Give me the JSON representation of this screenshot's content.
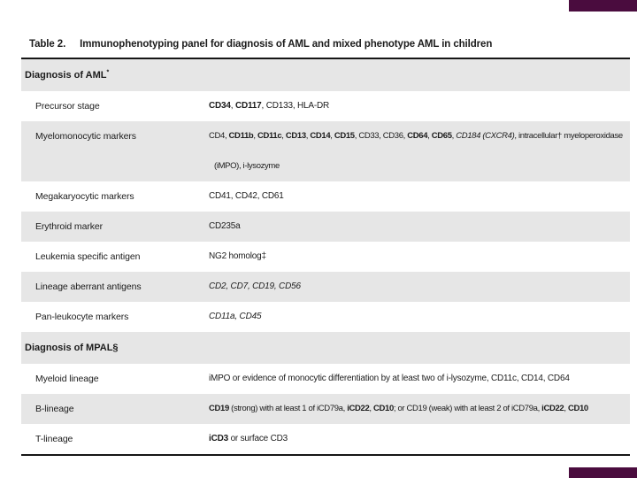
{
  "colors": {
    "accent": "#4a0c3e",
    "row_band": "#e6e6e6",
    "rule": "#161616",
    "text": "#1c1c1c"
  },
  "caption": {
    "label": "Table 2.",
    "title": "Immunophenotyping panel for diagnosis of AML and mixed phenotype AML in children"
  },
  "table": {
    "sections": [
      {
        "header": [
          {
            "t": "Diagnosis of AML"
          },
          {
            "t": "*",
            "sup": true
          }
        ],
        "rows": [
          {
            "label": "Precursor stage",
            "value": [
              {
                "t": "CD34",
                "b": true
              },
              {
                "t": ", "
              },
              {
                "t": "CD117",
                "b": true
              },
              {
                "t": ", CD133, HLA-DR"
              }
            ]
          },
          {
            "label": "Myelomonocytic markers",
            "tall": true,
            "tight": true,
            "value": [
              {
                "t": "CD4, "
              },
              {
                "t": "CD11b",
                "b": true
              },
              {
                "t": ", "
              },
              {
                "t": "CD11c",
                "b": true
              },
              {
                "t": ", "
              },
              {
                "t": "CD13",
                "b": true
              },
              {
                "t": ", "
              },
              {
                "t": "CD14",
                "b": true
              },
              {
                "t": ", "
              },
              {
                "t": "CD15",
                "b": true
              },
              {
                "t": ", CD33, CD36, "
              },
              {
                "t": "CD64",
                "b": true
              },
              {
                "t": ", "
              },
              {
                "t": "CD65",
                "b": true
              },
              {
                "t": ", "
              },
              {
                "t": "CD184 (CXCR4)",
                "i": true
              },
              {
                "t": ", intracellular† myeloperoxidase"
              },
              {
                "br": true
              },
              {
                "t": "(iMPO), i-lysozyme"
              }
            ]
          },
          {
            "label": "Megakaryocytic markers",
            "value": [
              {
                "t": "CD41, CD42, CD61"
              }
            ]
          },
          {
            "label": "Erythroid marker",
            "value": [
              {
                "t": "CD235a"
              }
            ]
          },
          {
            "label": "Leukemia specific antigen",
            "value": [
              {
                "t": "NG2 homolog‡"
              }
            ]
          },
          {
            "label": "Lineage aberrant antigens",
            "value": [
              {
                "t": "CD2, CD7, CD19, CD56",
                "i": true
              }
            ]
          },
          {
            "label": "Pan-leukocyte markers",
            "value": [
              {
                "t": "CD11a, CD45",
                "i": true
              }
            ]
          }
        ]
      },
      {
        "header": [
          {
            "t": "Diagnosis of MPAL§"
          }
        ],
        "rows": [
          {
            "label": "Myeloid lineage",
            "value": [
              {
                "t": "iMPO or evidence of monocytic differentiation by at least two of i-lysozyme, CD11c, CD14, CD64"
              }
            ]
          },
          {
            "label": "B-lineage",
            "tight": true,
            "value": [
              {
                "t": "CD19",
                "b": true
              },
              {
                "t": " (strong) with at least 1 of iCD79a, "
              },
              {
                "t": "iCD22",
                "b": true
              },
              {
                "t": ", "
              },
              {
                "t": "CD10",
                "b": true
              },
              {
                "t": "; or CD19 (weak) with at least 2 of iCD79a, "
              },
              {
                "t": "iCD22",
                "b": true
              },
              {
                "t": ", "
              },
              {
                "t": "CD10",
                "b": true
              }
            ]
          },
          {
            "label": "T-lineage",
            "value": [
              {
                "t": "iCD3",
                "b": true
              },
              {
                "t": " or surface CD3"
              }
            ]
          }
        ]
      }
    ]
  }
}
